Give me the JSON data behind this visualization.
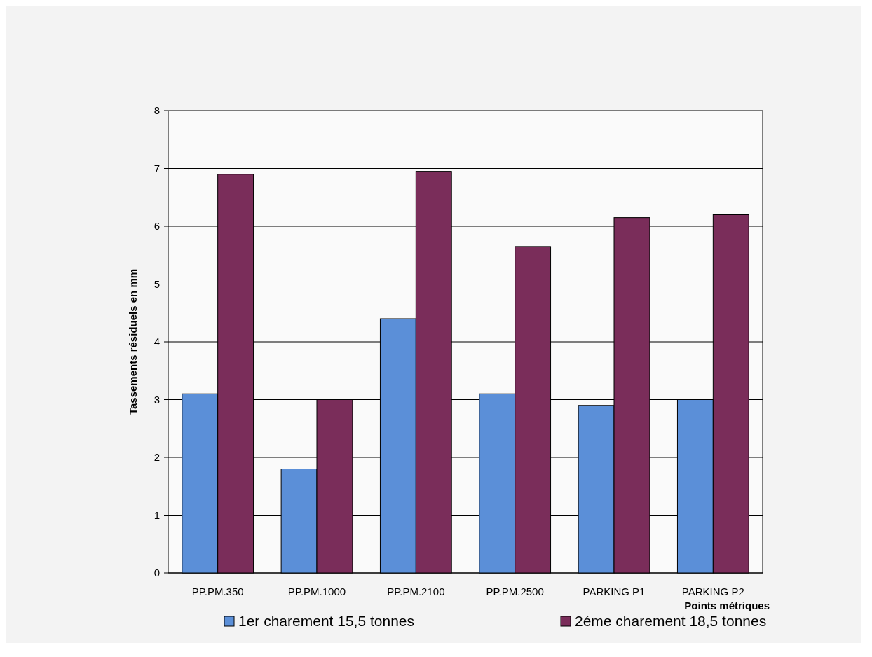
{
  "chart_data": {
    "type": "bar",
    "xlabel": "Points métriques",
    "ylabel": "Tassements résiduels en mm",
    "categories": [
      "PP.PM.350",
      "PP.PM.1000",
      "PP.PM.2100",
      "PP.PM.2500",
      "PARKING P1",
      "PARKING P2"
    ],
    "series": [
      {
        "name": "1er charement 15,5 tonnes",
        "color": "#5b8fd8",
        "values": [
          3.1,
          1.8,
          4.4,
          3.1,
          2.9,
          3.0
        ]
      },
      {
        "name": "2éme charement 18,5 tonnes",
        "color": "#7a2d5a",
        "values": [
          6.9,
          3.0,
          6.95,
          5.65,
          6.15,
          6.2
        ]
      }
    ],
    "ylim": [
      0,
      8
    ],
    "yticks": [
      0,
      1,
      2,
      3,
      4,
      5,
      6,
      7,
      8
    ],
    "grid": "y",
    "legend": "bottom"
  }
}
